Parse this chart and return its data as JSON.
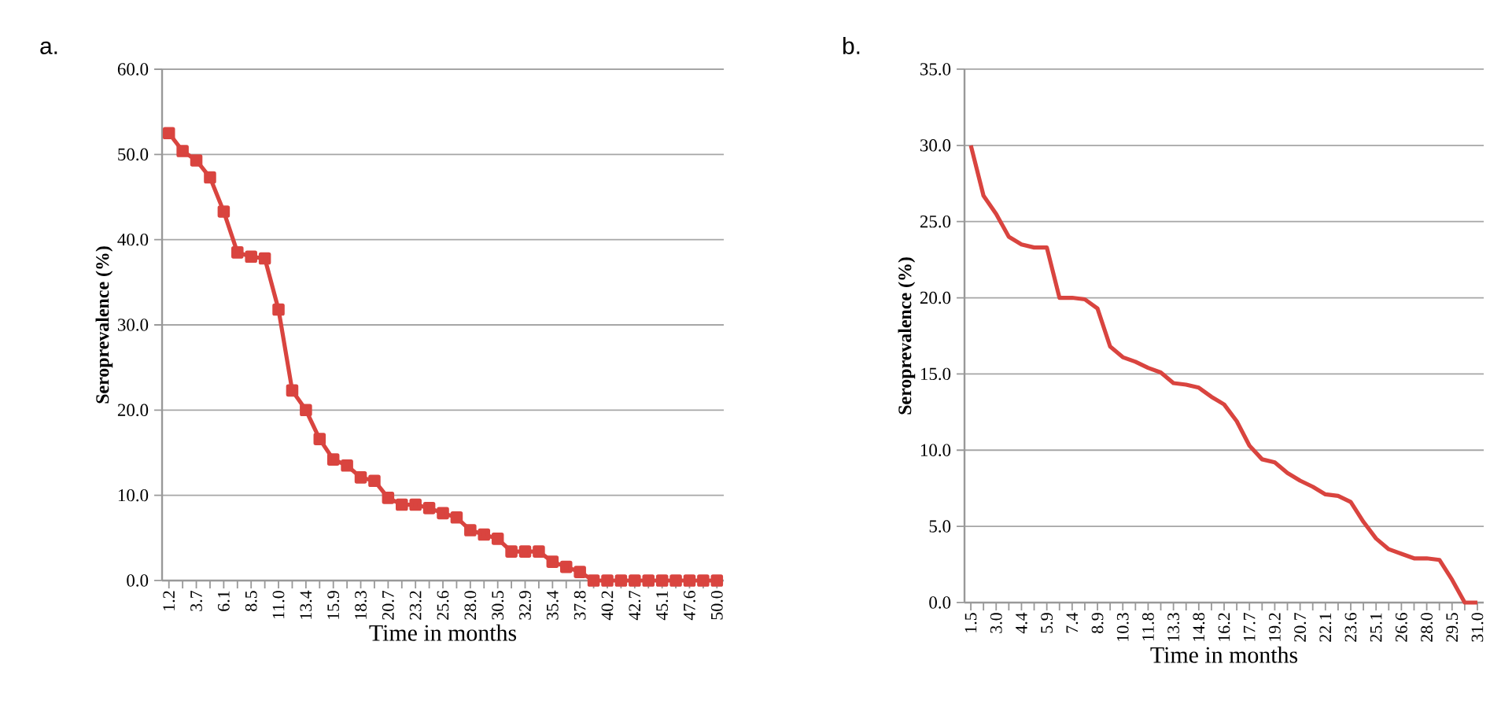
{
  "chart_data": [
    {
      "type": "line",
      "title": "a.",
      "xlabel": "Time in months",
      "ylabel": "Seroprevalence (%)",
      "categories": [
        "1.2",
        null,
        "3.7",
        null,
        "6.1",
        null,
        "8.5",
        null,
        "11.0",
        null,
        "13.4",
        null,
        "15.9",
        null,
        "18.3",
        null,
        "20.7",
        null,
        "23.2",
        null,
        "25.6",
        null,
        "28.0",
        null,
        "30.5",
        null,
        "32.9",
        null,
        "35.4",
        null,
        "37.8",
        null,
        "40.2",
        null,
        "42.7",
        null,
        "45.1",
        null,
        "47.6",
        null,
        "50.0"
      ],
      "values": [
        52.5,
        50.4,
        49.3,
        47.3,
        43.3,
        38.5,
        38.0,
        37.8,
        31.8,
        22.3,
        20.0,
        16.6,
        14.2,
        13.5,
        12.1,
        11.7,
        9.7,
        8.9,
        8.9,
        8.5,
        7.9,
        7.4,
        5.9,
        5.4,
        4.9,
        3.4,
        3.4,
        3.4,
        2.2,
        1.6,
        1.0,
        0,
        0,
        0,
        0,
        0,
        0,
        0,
        0,
        0,
        0
      ],
      "color": "#d9443f",
      "marker": "square",
      "grid": "y",
      "ylim": [
        0,
        60
      ],
      "yticks": [
        {
          "value": 0,
          "label": "0.0"
        },
        {
          "value": 10,
          "label": "10.0"
        },
        {
          "value": 20,
          "label": "20.0"
        },
        {
          "value": 30,
          "label": "30.0"
        },
        {
          "value": 40,
          "label": "40.0"
        },
        {
          "value": 50,
          "label": "50.0"
        },
        {
          "value": 60,
          "label": "60.0"
        }
      ]
    },
    {
      "type": "line",
      "title": "b.",
      "xlabel": "Time in months",
      "ylabel": "Seroprevalence (%)",
      "categories": [
        "1.5",
        null,
        "3.0",
        null,
        "4.4",
        null,
        "5.9",
        null,
        "7.4",
        null,
        "8.9",
        null,
        "10.3",
        null,
        "11.8",
        null,
        "13.3",
        null,
        "14.8",
        null,
        "16.2",
        null,
        "17.7",
        null,
        "19.2",
        null,
        "20.7",
        null,
        "22.1",
        null,
        "23.6",
        null,
        "25.1",
        null,
        "26.6",
        null,
        "28.0",
        null,
        "29.5",
        null,
        "31.0"
      ],
      "values": [
        30.0,
        26.7,
        25.5,
        24.0,
        23.5,
        23.3,
        23.3,
        20.0,
        20.0,
        19.9,
        19.3,
        16.8,
        16.1,
        15.8,
        15.4,
        15.1,
        14.4,
        14.3,
        14.1,
        13.5,
        13.0,
        11.9,
        10.3,
        9.4,
        9.2,
        8.5,
        8.0,
        7.6,
        7.1,
        7.0,
        6.6,
        5.3,
        4.2,
        3.5,
        3.2,
        2.9,
        2.9,
        2.8,
        1.5,
        0,
        0
      ],
      "color": "#d9443f",
      "marker": "none",
      "grid": "y",
      "ylim": [
        0,
        35
      ],
      "yticks": [
        {
          "value": 0,
          "label": "0.0"
        },
        {
          "value": 5,
          "label": "5.0"
        },
        {
          "value": 10,
          "label": "10.0"
        },
        {
          "value": 15,
          "label": "15.0"
        },
        {
          "value": 20,
          "label": "20.0"
        },
        {
          "value": 25,
          "label": "25.0"
        },
        {
          "value": 30,
          "label": "30.0"
        },
        {
          "value": 35,
          "label": "35.0"
        }
      ]
    }
  ]
}
